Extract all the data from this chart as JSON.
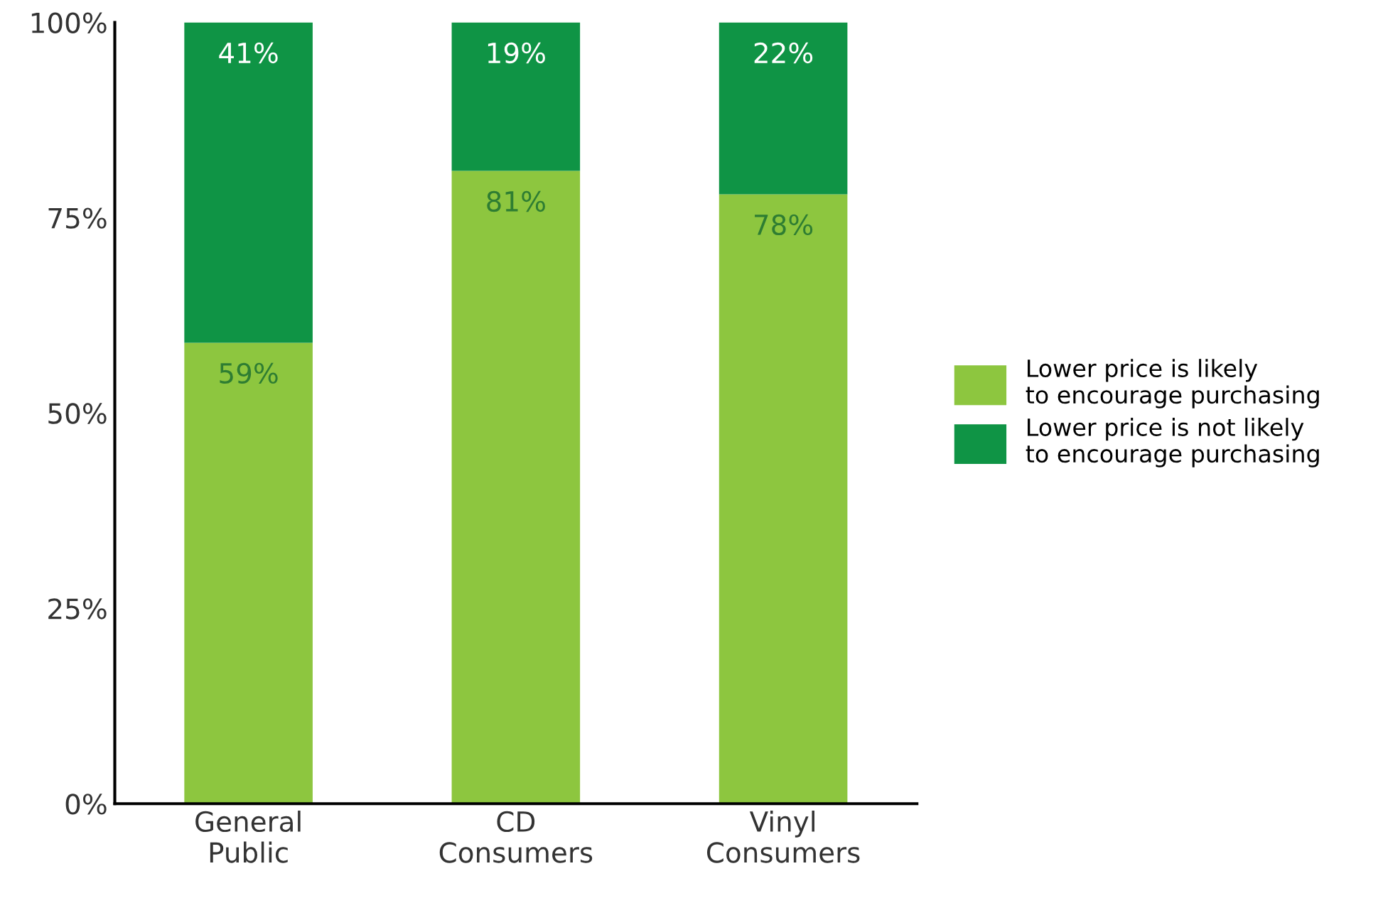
{
  "chart_data": {
    "type": "bar",
    "stacked": true,
    "categories": [
      "General\nPublic",
      "CD\nConsumers",
      "Vinyl\nConsumers"
    ],
    "series": [
      {
        "name": "Lower price is likely\nto encourage purchasing",
        "color": "#8dc63f",
        "values": [
          59,
          81,
          78
        ],
        "value_labels": [
          "59%",
          "81%",
          "78%"
        ]
      },
      {
        "name": "Lower price is not likely\nto encourage purchasing",
        "color": "#0f9445",
        "values": [
          41,
          19,
          22
        ],
        "value_labels": [
          "41%",
          "19%",
          "22%"
        ]
      }
    ],
    "ylim": [
      0,
      100
    ],
    "yticks": [
      {
        "value": 0,
        "label": "0%"
      },
      {
        "value": 25,
        "label": "25%"
      },
      {
        "value": 50,
        "label": "50%"
      },
      {
        "value": 75,
        "label": "75%"
      },
      {
        "value": 100,
        "label": "100%"
      }
    ],
    "grid": false,
    "legend": "right"
  }
}
